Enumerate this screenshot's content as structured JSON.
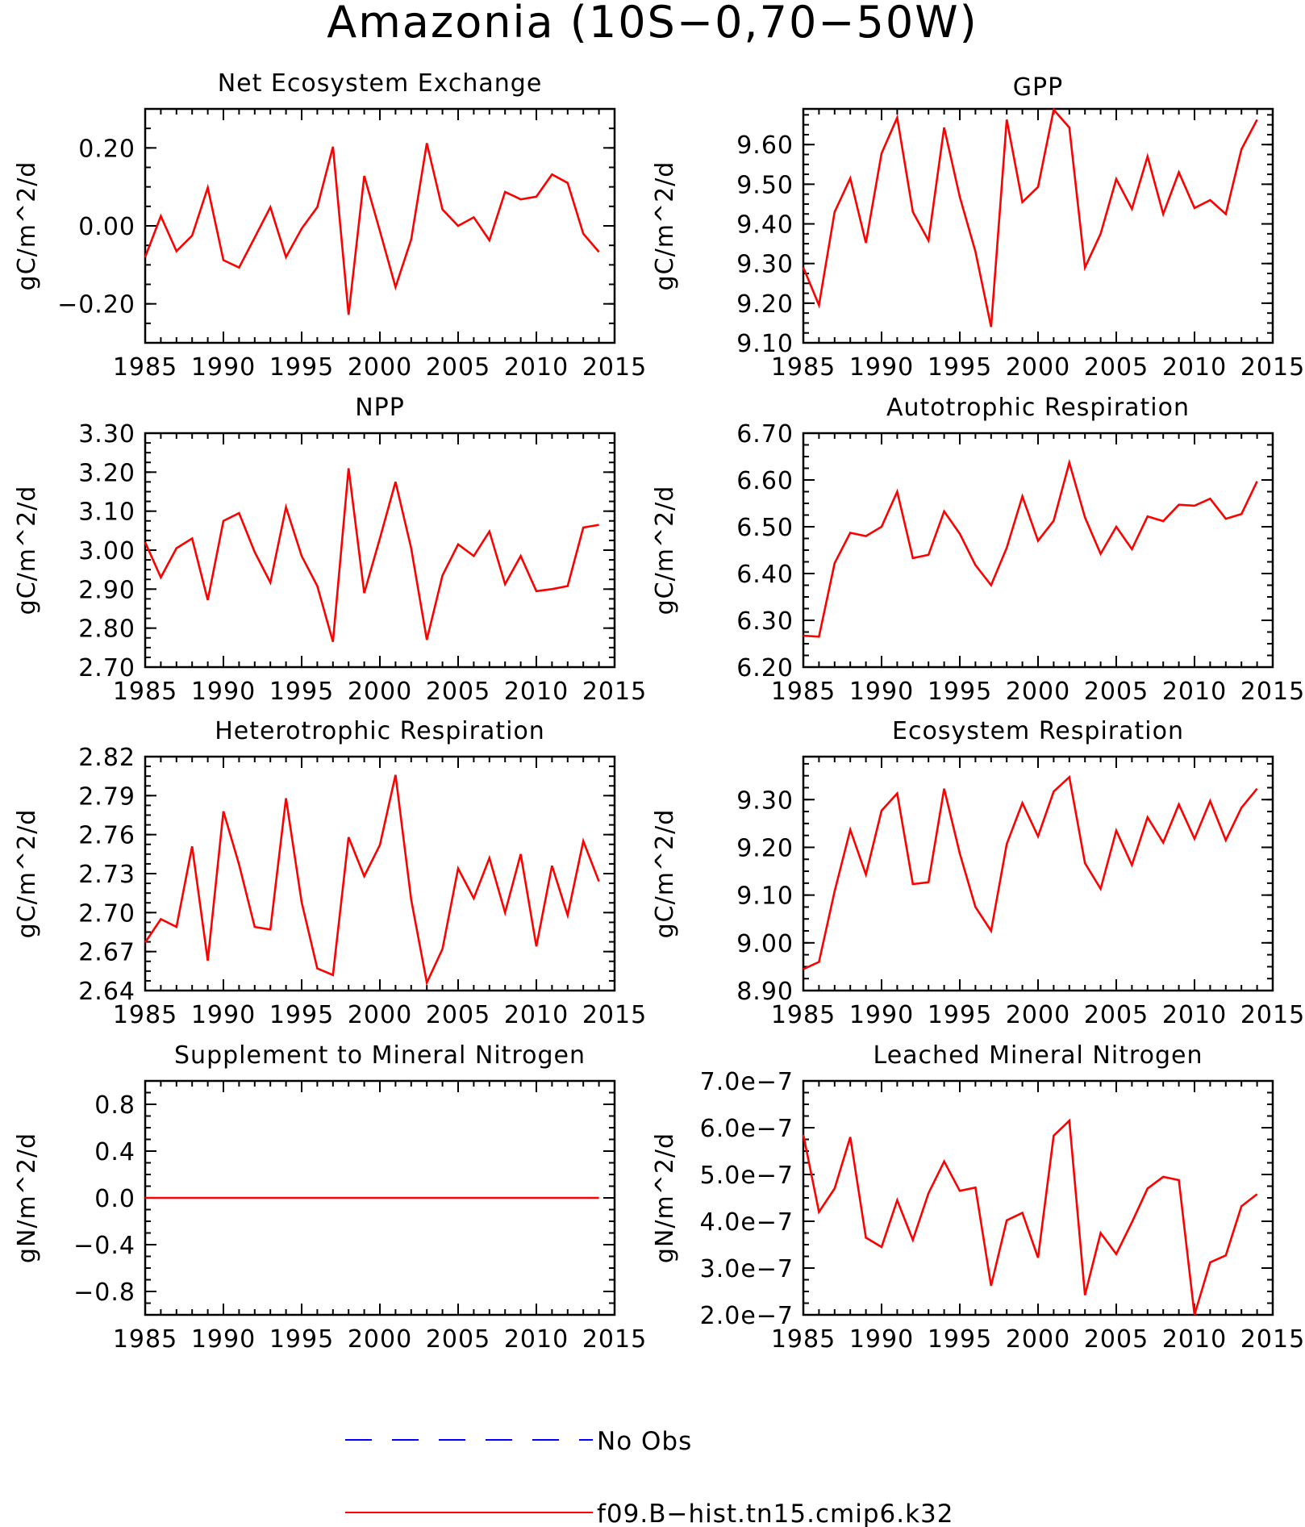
{
  "title": "Amazonia (10S−0,70−50W)",
  "colors": {
    "model": "#ff0000",
    "obs": "#0000ff",
    "axis": "#000000"
  },
  "legend": [
    {
      "label": "No Obs",
      "color": "#0000ff",
      "style": "dashed"
    },
    {
      "label": "f09.B−hist.tn15.cmip6.k32",
      "color": "#ff0000",
      "style": "solid"
    }
  ],
  "chart_data": [
    {
      "type": "line",
      "title": "Net Ecosystem Exchange",
      "ylabel": "gC/m^2/d",
      "xlim": [
        1985,
        2015
      ],
      "ylim": [
        -0.3,
        0.3
      ],
      "xticks": [
        "1985",
        "1990",
        "1995",
        "2000",
        "2005",
        "2010",
        "2015"
      ],
      "yticks": [
        {
          "v": -0.2,
          "label": "−0.20"
        },
        {
          "v": 0.0,
          "label": "0.00"
        },
        {
          "v": 0.2,
          "label": "0.20"
        }
      ],
      "yminor": 0.05,
      "x": [
        1985,
        1986,
        1987,
        1988,
        1989,
        1990,
        1991,
        1992,
        1993,
        1994,
        1995,
        1996,
        1997,
        1998,
        1999,
        2000,
        2001,
        2002,
        2003,
        2004,
        2005,
        2006,
        2007,
        2008,
        2009,
        2010,
        2011,
        2012,
        2013,
        2014
      ],
      "series": [
        {
          "values": [
            -0.08,
            0.025,
            -0.065,
            -0.025,
            0.098,
            -0.088,
            -0.107,
            -0.03,
            0.048,
            -0.08,
            -0.007,
            0.048,
            0.203,
            -0.228,
            0.128,
            -0.013,
            -0.157,
            -0.035,
            0.212,
            0.042,
            0.0,
            0.022,
            -0.037,
            0.087,
            0.068,
            0.075,
            0.132,
            0.11,
            -0.02,
            -0.067
          ]
        }
      ]
    },
    {
      "type": "line",
      "title": "GPP",
      "ylabel": "gC/m^2/d",
      "xlim": [
        1985,
        2015
      ],
      "ylim": [
        9.1,
        9.69
      ],
      "xticks": [
        "1985",
        "1990",
        "1995",
        "2000",
        "2005",
        "2010",
        "2015"
      ],
      "yticks": [
        {
          "v": 9.1,
          "label": "9.10"
        },
        {
          "v": 9.2,
          "label": "9.20"
        },
        {
          "v": 9.3,
          "label": "9.30"
        },
        {
          "v": 9.4,
          "label": "9.40"
        },
        {
          "v": 9.5,
          "label": "9.50"
        },
        {
          "v": 9.6,
          "label": "9.60"
        }
      ],
      "yminor": 0.025,
      "x": [
        1985,
        1986,
        1987,
        1988,
        1989,
        1990,
        1991,
        1992,
        1993,
        1994,
        1995,
        1996,
        1997,
        1998,
        1999,
        2000,
        2001,
        2002,
        2003,
        2004,
        2005,
        2006,
        2007,
        2008,
        2009,
        2010,
        2011,
        2012,
        2013,
        2014
      ],
      "series": [
        {
          "values": [
            9.29,
            9.195,
            9.43,
            9.515,
            9.352,
            9.578,
            9.668,
            9.43,
            9.358,
            9.643,
            9.468,
            9.33,
            9.14,
            9.663,
            9.455,
            9.493,
            9.688,
            9.643,
            9.29,
            9.375,
            9.513,
            9.438,
            9.57,
            9.425,
            9.53,
            9.44,
            9.46,
            9.425,
            9.588,
            9.663
          ]
        }
      ]
    },
    {
      "type": "line",
      "title": "NPP",
      "ylabel": "gC/m^2/d",
      "xlim": [
        1985,
        2015
      ],
      "ylim": [
        2.7,
        3.3
      ],
      "xticks": [
        "1985",
        "1990",
        "1995",
        "2000",
        "2005",
        "2010",
        "2015"
      ],
      "yticks": [
        {
          "v": 2.7,
          "label": "2.70"
        },
        {
          "v": 2.8,
          "label": "2.80"
        },
        {
          "v": 2.9,
          "label": "2.90"
        },
        {
          "v": 3.0,
          "label": "3.00"
        },
        {
          "v": 3.1,
          "label": "3.10"
        },
        {
          "v": 3.2,
          "label": "3.20"
        },
        {
          "v": 3.3,
          "label": "3.30"
        }
      ],
      "yminor": 0.025,
      "x": [
        1985,
        1986,
        1987,
        1988,
        1989,
        1990,
        1991,
        1992,
        1993,
        1994,
        1995,
        1996,
        1997,
        1998,
        1999,
        2000,
        2001,
        2002,
        2003,
        2004,
        2005,
        2006,
        2007,
        2008,
        2009,
        2010,
        2011,
        2012,
        2013,
        2014
      ],
      "series": [
        {
          "values": [
            3.02,
            2.93,
            3.005,
            3.03,
            2.872,
            3.075,
            3.095,
            2.995,
            2.917,
            3.11,
            2.985,
            2.908,
            2.765,
            3.21,
            2.89,
            3.03,
            3.175,
            3.005,
            2.77,
            2.935,
            3.015,
            2.985,
            3.048,
            2.913,
            2.985,
            2.895,
            2.9,
            2.908,
            3.058,
            3.065
          ]
        }
      ]
    },
    {
      "type": "line",
      "title": "Autotrophic Respiration",
      "ylabel": "gC/m^2/d",
      "xlim": [
        1985,
        2015
      ],
      "ylim": [
        6.2,
        6.7
      ],
      "xticks": [
        "1985",
        "1990",
        "1995",
        "2000",
        "2005",
        "2010",
        "2015"
      ],
      "yticks": [
        {
          "v": 6.2,
          "label": "6.20"
        },
        {
          "v": 6.3,
          "label": "6.30"
        },
        {
          "v": 6.4,
          "label": "6.40"
        },
        {
          "v": 6.5,
          "label": "6.50"
        },
        {
          "v": 6.6,
          "label": "6.60"
        },
        {
          "v": 6.7,
          "label": "6.70"
        }
      ],
      "yminor": 0.025,
      "x": [
        1985,
        1986,
        1987,
        1988,
        1989,
        1990,
        1991,
        1992,
        1993,
        1994,
        1995,
        1996,
        1997,
        1998,
        1999,
        2000,
        2001,
        2002,
        2003,
        2004,
        2005,
        2006,
        2007,
        2008,
        2009,
        2010,
        2011,
        2012,
        2013,
        2014
      ],
      "series": [
        {
          "values": [
            6.267,
            6.265,
            6.422,
            6.487,
            6.48,
            6.5,
            6.575,
            6.433,
            6.44,
            6.533,
            6.485,
            6.418,
            6.375,
            6.455,
            6.565,
            6.47,
            6.513,
            6.637,
            6.52,
            6.442,
            6.5,
            6.452,
            6.522,
            6.512,
            6.547,
            6.545,
            6.56,
            6.517,
            6.527,
            6.597
          ]
        }
      ]
    },
    {
      "type": "line",
      "title": "Heterotrophic Respiration",
      "ylabel": "gC/m^2/d",
      "xlim": [
        1985,
        2015
      ],
      "ylim": [
        2.64,
        2.82
      ],
      "xticks": [
        "1985",
        "1990",
        "1995",
        "2000",
        "2005",
        "2010",
        "2015"
      ],
      "yticks": [
        {
          "v": 2.64,
          "label": "2.64"
        },
        {
          "v": 2.67,
          "label": "2.67"
        },
        {
          "v": 2.7,
          "label": "2.70"
        },
        {
          "v": 2.73,
          "label": "2.73"
        },
        {
          "v": 2.76,
          "label": "2.76"
        },
        {
          "v": 2.79,
          "label": "2.79"
        },
        {
          "v": 2.82,
          "label": "2.82"
        }
      ],
      "yminor": 0.0075,
      "x": [
        1985,
        1986,
        1987,
        1988,
        1989,
        1990,
        1991,
        1992,
        1993,
        1994,
        1995,
        1996,
        1997,
        1998,
        1999,
        2000,
        2001,
        2002,
        2003,
        2004,
        2005,
        2006,
        2007,
        2008,
        2009,
        2010,
        2011,
        2012,
        2013,
        2014
      ],
      "series": [
        {
          "values": [
            2.677,
            2.695,
            2.689,
            2.751,
            2.663,
            2.778,
            2.737,
            2.689,
            2.687,
            2.788,
            2.708,
            2.657,
            2.652,
            2.758,
            2.728,
            2.752,
            2.806,
            2.71,
            2.646,
            2.672,
            2.734,
            2.711,
            2.742,
            2.7,
            2.745,
            2.674,
            2.736,
            2.698,
            2.755,
            2.724
          ]
        }
      ]
    },
    {
      "type": "line",
      "title": "Ecosystem Respiration",
      "ylabel": "gC/m^2/d",
      "xlim": [
        1985,
        2015
      ],
      "ylim": [
        8.9,
        9.39
      ],
      "xticks": [
        "1985",
        "1990",
        "1995",
        "2000",
        "2005",
        "2010",
        "2015"
      ],
      "yticks": [
        {
          "v": 8.9,
          "label": "8.90"
        },
        {
          "v": 9.0,
          "label": "9.00"
        },
        {
          "v": 9.1,
          "label": "9.10"
        },
        {
          "v": 9.2,
          "label": "9.20"
        },
        {
          "v": 9.3,
          "label": "9.30"
        }
      ],
      "yminor": 0.025,
      "x": [
        1985,
        1986,
        1987,
        1988,
        1989,
        1990,
        1991,
        1992,
        1993,
        1994,
        1995,
        1996,
        1997,
        1998,
        1999,
        2000,
        2001,
        2002,
        2003,
        2004,
        2005,
        2006,
        2007,
        2008,
        2009,
        2010,
        2011,
        2012,
        2013,
        2014
      ],
      "series": [
        {
          "values": [
            8.945,
            8.96,
            9.108,
            9.237,
            9.143,
            9.277,
            9.313,
            9.123,
            9.127,
            9.323,
            9.187,
            9.075,
            9.025,
            9.207,
            9.293,
            9.223,
            9.317,
            9.347,
            9.167,
            9.113,
            9.235,
            9.163,
            9.263,
            9.21,
            9.29,
            9.218,
            9.297,
            9.215,
            9.283,
            9.323
          ]
        }
      ]
    },
    {
      "type": "line",
      "title": "Supplement to Mineral Nitrogen",
      "ylabel": "gN/m^2/d",
      "xlim": [
        1985,
        2015
      ],
      "ylim": [
        -1.0,
        1.0
      ],
      "xticks": [
        "1985",
        "1990",
        "1995",
        "2000",
        "2005",
        "2010",
        "2015"
      ],
      "yticks": [
        {
          "v": -0.8,
          "label": "−0.8"
        },
        {
          "v": -0.4,
          "label": "−0.4"
        },
        {
          "v": 0.0,
          "label": "0.0"
        },
        {
          "v": 0.4,
          "label": "0.4"
        },
        {
          "v": 0.8,
          "label": "0.8"
        }
      ],
      "yminor": 0.1,
      "x": [
        1985,
        1986,
        1987,
        1988,
        1989,
        1990,
        1991,
        1992,
        1993,
        1994,
        1995,
        1996,
        1997,
        1998,
        1999,
        2000,
        2001,
        2002,
        2003,
        2004,
        2005,
        2006,
        2007,
        2008,
        2009,
        2010,
        2011,
        2012,
        2013,
        2014
      ],
      "series": [
        {
          "values": [
            0,
            0,
            0,
            0,
            0,
            0,
            0,
            0,
            0,
            0,
            0,
            0,
            0,
            0,
            0,
            0,
            0,
            0,
            0,
            0,
            0,
            0,
            0,
            0,
            0,
            0,
            0,
            0,
            0,
            0
          ]
        }
      ]
    },
    {
      "type": "line",
      "title": "Leached Mineral Nitrogen",
      "ylabel": "gN/m^2/d",
      "xlim": [
        1985,
        2015
      ],
      "ylim": [
        2e-07,
        7e-07
      ],
      "xticks": [
        "1985",
        "1990",
        "1995",
        "2000",
        "2005",
        "2010",
        "2015"
      ],
      "yticks": [
        {
          "v": 2e-07,
          "label": "2.0e−7"
        },
        {
          "v": 3e-07,
          "label": "3.0e−7"
        },
        {
          "v": 4e-07,
          "label": "4.0e−7"
        },
        {
          "v": 5e-07,
          "label": "5.0e−7"
        },
        {
          "v": 6e-07,
          "label": "6.0e−7"
        },
        {
          "v": 7e-07,
          "label": "7.0e−7"
        }
      ],
      "yminor": 2.5e-08,
      "x": [
        1985,
        1986,
        1987,
        1988,
        1989,
        1990,
        1991,
        1992,
        1993,
        1994,
        1995,
        1996,
        1997,
        1998,
        1999,
        2000,
        2001,
        2002,
        2003,
        2004,
        2005,
        2006,
        2007,
        2008,
        2009,
        2010,
        2011,
        2012,
        2013,
        2014
      ],
      "series": [
        {
          "values": [
            5.85e-07,
            4.2e-07,
            4.7e-07,
            5.8e-07,
            3.65e-07,
            3.45e-07,
            4.45e-07,
            3.6e-07,
            4.6e-07,
            5.28e-07,
            4.65e-07,
            4.72e-07,
            2.62e-07,
            4.02e-07,
            4.18e-07,
            3.22e-07,
            5.83e-07,
            6.15e-07,
            2.42e-07,
            3.75e-07,
            3.3e-07,
            3.98e-07,
            4.7e-07,
            4.95e-07,
            4.88e-07,
            2e-07,
            3.12e-07,
            3.27e-07,
            4.32e-07,
            4.58e-07
          ]
        }
      ]
    }
  ]
}
